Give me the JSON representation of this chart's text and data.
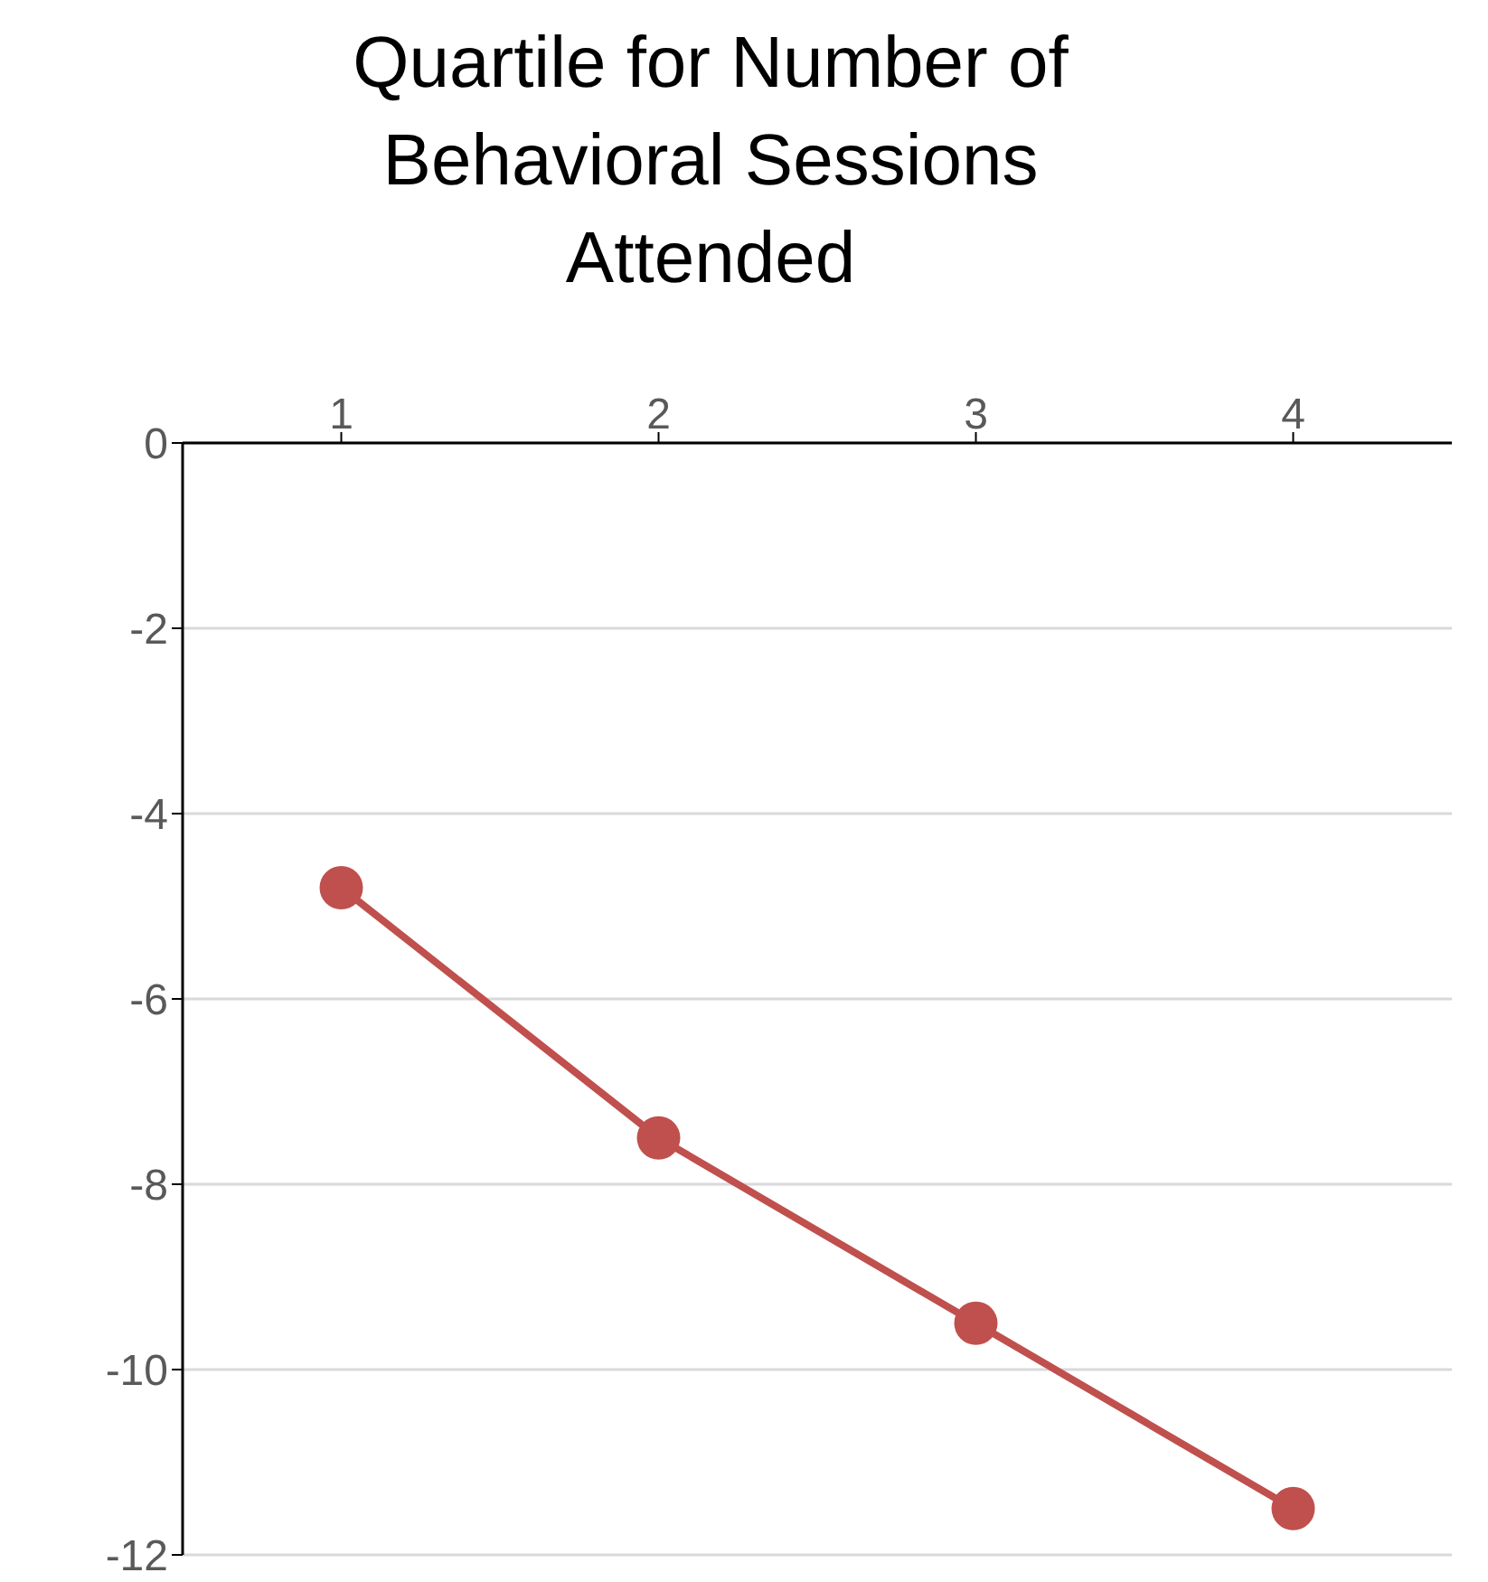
{
  "chart_data": {
    "type": "line",
    "title": "Quartile for Number of Behavioral Sessions Attended",
    "categories": [
      "1",
      "2",
      "3",
      "4"
    ],
    "series": [
      {
        "color": "#c0504d",
        "values": [
          -4.8,
          -7.5,
          -9.5,
          -11.5
        ]
      }
    ],
    "ylim": [
      -12,
      0
    ],
    "yticks": [
      0,
      -2,
      -4,
      -6,
      -8,
      -10,
      -12
    ],
    "grid": "y",
    "marker": "circle"
  }
}
